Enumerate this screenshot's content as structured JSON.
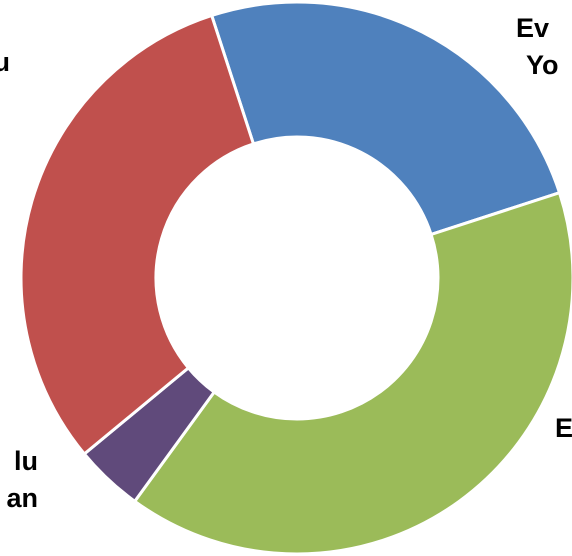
{
  "chart_data": {
    "type": "pie",
    "variant": "donut",
    "legend": "none",
    "slices": [
      {
        "label_lines": [
          "Ev",
          "Yo"
        ],
        "value": 25,
        "color": "#4F81BD"
      },
      {
        "label_lines": [
          "E"
        ],
        "value": 40,
        "color": "#9BBB59"
      },
      {
        "label_lines": [
          "lu",
          "an"
        ],
        "value": 4,
        "color": "#604A7B"
      },
      {
        "label_lines": [
          "u"
        ],
        "value": 31,
        "color": "#C0504D"
      }
    ]
  }
}
